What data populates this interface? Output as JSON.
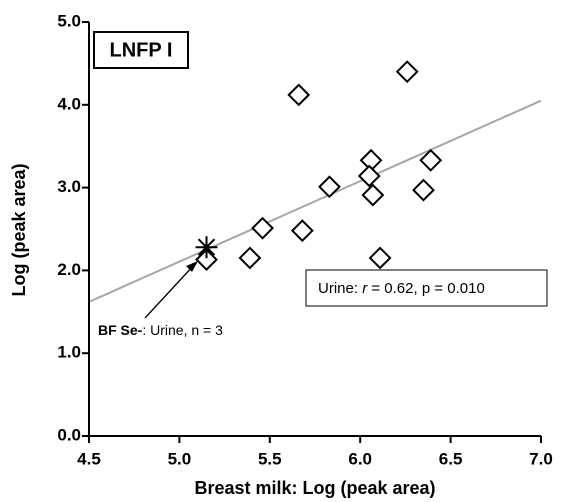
{
  "chart_data": {
    "type": "scatter",
    "panel_label": "LNFP I",
    "x_label": "Breast milk: Log (peak area)",
    "y_label": "Log (peak area)",
    "xlim": [
      4.5,
      7.0
    ],
    "ylim": [
      0,
      5.0
    ],
    "xticks": [
      4.5,
      {
        "value": 5.0,
        "label": "5.0"
      },
      5.5,
      {
        "value": 6.0,
        "label": "6.0"
      },
      6.5,
      {
        "value": 7.0,
        "label": "7.0"
      }
    ],
    "yticks": [
      {
        "value": 0,
        "label": "0.0"
      },
      {
        "value": 1,
        "label": "1.0"
      },
      {
        "value": 2,
        "label": "2.0"
      },
      {
        "value": 3,
        "label": "3.0"
      },
      {
        "value": 4,
        "label": "4.0"
      },
      {
        "value": 5,
        "label": "5.0"
      }
    ],
    "series": [
      {
        "marker": "diamond",
        "color": "#000000",
        "x": [
          6.26,
          5.66,
          6.06,
          6.39,
          6.05,
          5.83,
          6.07,
          6.35,
          5.46,
          5.68,
          5.39,
          6.11,
          5.15
        ],
        "values": [
          4.4,
          4.12,
          3.33,
          3.33,
          3.14,
          3.01,
          2.91,
          2.97,
          2.51,
          2.48,
          2.15,
          2.15,
          2.13
        ]
      },
      {
        "marker": "asterisk",
        "color": "#000000",
        "x": [
          5.15
        ],
        "values": [
          2.28
        ]
      }
    ],
    "fit_line": {
      "color": "#a6a6a6",
      "x": [
        4.5,
        7.0
      ],
      "values": [
        1.62,
        4.05
      ]
    },
    "stat_annotation": {
      "prefix": "Urine:",
      "symbol": "r",
      "text": "= 0.62, p = 0.010"
    },
    "arrow_annotation": {
      "bold": "BF Se-",
      "text": ": Urine, n = 3"
    }
  }
}
